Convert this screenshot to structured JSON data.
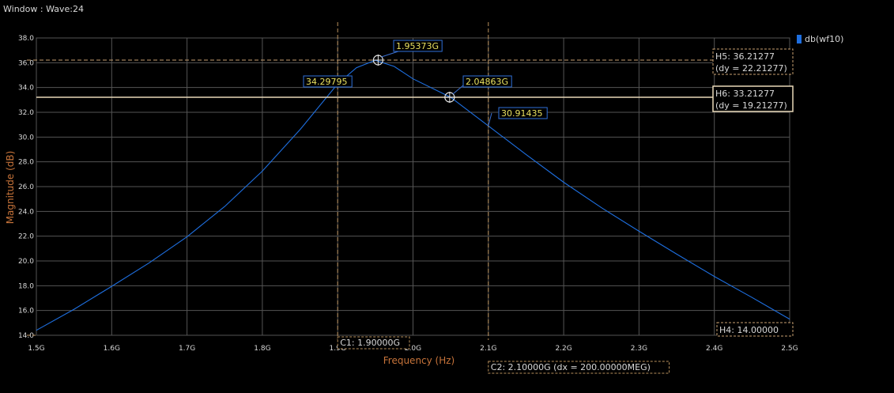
{
  "window": {
    "title": "Window : Wave:24"
  },
  "chart_data": {
    "type": "line",
    "xlabel": "Frequency (Hz)",
    "ylabel": "Magnitude (dB)",
    "xlim": [
      1.5,
      2.5
    ],
    "ylim": [
      14.0,
      38.0
    ],
    "x_ticks": [
      1.5,
      1.6,
      1.7,
      1.8,
      1.9,
      2.0,
      2.1,
      2.2,
      2.3,
      2.4,
      2.5
    ],
    "x_tick_labels": [
      "1.5G",
      "1.6G",
      "1.7G",
      "1.8G",
      "1.9G",
      "2.0G",
      "2.1G",
      "2.2G",
      "2.3G",
      "2.4G",
      "2.5G"
    ],
    "y_ticks": [
      14,
      16,
      18,
      20,
      22,
      24,
      26,
      28,
      30,
      32,
      34,
      36,
      38
    ],
    "y_tick_labels": [
      "14.0",
      "16.0",
      "18.0",
      "20.0",
      "22.0",
      "24.0",
      "26.0",
      "28.0",
      "30.0",
      "32.0",
      "34.0",
      "36.0",
      "38.0"
    ],
    "grid": true,
    "legend": "top-right",
    "series": [
      {
        "name": "db(wf10)",
        "color": "#1e6fe0",
        "x": [
          1.5,
          1.55,
          1.6,
          1.65,
          1.7,
          1.75,
          1.8,
          1.85,
          1.9,
          1.925,
          1.95,
          1.975,
          2.0,
          2.05,
          2.1,
          2.15,
          2.2,
          2.25,
          2.3,
          2.35,
          2.4,
          2.45,
          2.5
        ],
        "y": [
          14.4,
          16.1,
          17.95,
          19.85,
          21.95,
          24.4,
          27.25,
          30.6,
          34.3,
          35.6,
          36.2,
          35.7,
          34.7,
          33.21,
          30.9,
          28.6,
          26.35,
          24.3,
          22.4,
          20.55,
          18.75,
          17.05,
          15.3
        ]
      }
    ],
    "markers": [
      {
        "label": "1.95373G",
        "x": 1.95373,
        "y": 36.21277
      },
      {
        "label": "2.04863G",
        "x": 2.04863,
        "y": 33.21277
      },
      {
        "label": "34.29795",
        "x": 1.9,
        "y": 34.29795
      },
      {
        "label": "30.91435",
        "x": 2.1,
        "y": 30.91435
      }
    ],
    "vertical_cursors": [
      {
        "name": "C1",
        "x": 1.9,
        "label": "C1: 1.90000G"
      },
      {
        "name": "C2",
        "x": 2.1,
        "label": "C2: 2.10000G (dx = 200.00000MEG)"
      }
    ],
    "horizontal_cursors": [
      {
        "name": "H4",
        "y": 14.0,
        "label": "H4: 14.00000"
      },
      {
        "name": "H5",
        "y": 36.21277,
        "label": "H5: 36.21277",
        "dy": "(dy = 22.21277)"
      },
      {
        "name": "H6",
        "y": 33.21277,
        "label": "H6: 33.21277",
        "dy": "(dy = 19.21277)"
      }
    ]
  }
}
